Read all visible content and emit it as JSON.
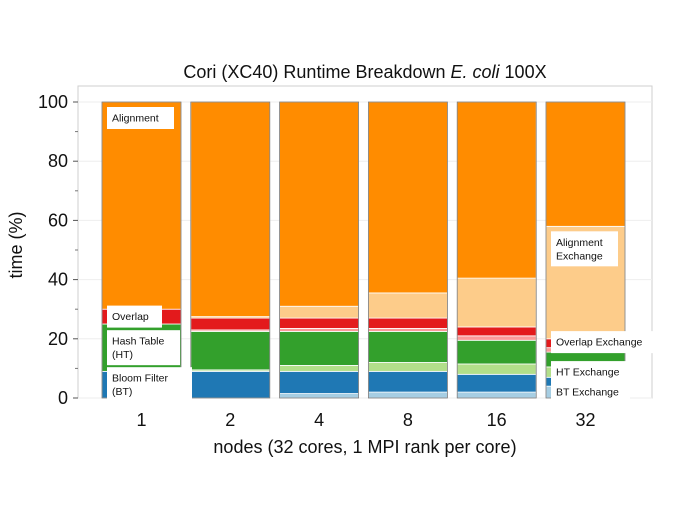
{
  "chart_data": {
    "type": "bar",
    "stacked": true,
    "title_prefix": "Cori (XC40) Runtime Breakdown ",
    "title_italic": "E. coli",
    "title_suffix": " 100X",
    "xlabel": "nodes (32 cores, 1 MPI rank per core)",
    "ylabel": "time (%)",
    "ylim": [
      0,
      100
    ],
    "yticks": [
      0,
      20,
      40,
      60,
      80,
      100
    ],
    "grid": true,
    "categories": [
      "1",
      "2",
      "4",
      "8",
      "16",
      "32"
    ],
    "colors": {
      "bt_exchange": "#a6cee3",
      "bloom_filter": "#1f78b4",
      "ht_exchange": "#b2df8a",
      "hash_table": "#33a02c",
      "overlap_exchange": "#fb9a99",
      "overlap": "#e31a1c",
      "alignment_exchange": "#fdcc8a",
      "alignment": "#ff8c00"
    },
    "series": [
      {
        "key": "bt_exchange",
        "values": [
          0,
          0,
          1.5,
          2.0,
          2.0,
          4.0
        ]
      },
      {
        "key": "bloom_filter",
        "values": [
          9.0,
          9.0,
          7.5,
          7.0,
          6.0,
          3.0
        ]
      },
      {
        "key": "ht_exchange",
        "values": [
          0,
          0.5,
          2.0,
          3.0,
          3.5,
          3.5
        ]
      },
      {
        "key": "hash_table",
        "values": [
          16.0,
          13.0,
          11.5,
          10.5,
          8.0,
          5.0
        ]
      },
      {
        "key": "overlap_exchange",
        "values": [
          0,
          0.5,
          1.0,
          1.0,
          1.5,
          1.5
        ]
      },
      {
        "key": "overlap",
        "values": [
          5.0,
          4.0,
          3.5,
          3.5,
          3.0,
          3.0
        ]
      },
      {
        "key": "alignment_exchange",
        "values": [
          0,
          0.5,
          4.0,
          8.5,
          16.5,
          38.0
        ]
      },
      {
        "key": "alignment",
        "values": [
          70.0,
          72.5,
          69.0,
          64.5,
          59.5,
          42.0
        ]
      }
    ],
    "annotations": [
      {
        "lines": [
          "Alignment"
        ],
        "bar": 0,
        "series_key": "alignment"
      },
      {
        "lines": [
          "Overlap"
        ],
        "bar": 0,
        "series_key": "overlap"
      },
      {
        "lines": [
          "Hash Table",
          "(HT)"
        ],
        "bar": 0,
        "series_key": "hash_table"
      },
      {
        "lines": [
          "Bloom Filter",
          "(BT)"
        ],
        "bar": 0,
        "series_key": "bloom_filter"
      },
      {
        "lines": [
          "Alignment",
          "Exchange"
        ],
        "bar": 5,
        "series_key": "alignment_exchange"
      },
      {
        "lines": [
          "Overlap Exchange"
        ],
        "bar": 5,
        "series_key": "overlap_exchange"
      },
      {
        "lines": [
          "HT Exchange"
        ],
        "bar": 5,
        "series_key": "ht_exchange"
      },
      {
        "lines": [
          "BT Exchange"
        ],
        "bar": 5,
        "series_key": "bt_exchange"
      }
    ]
  }
}
